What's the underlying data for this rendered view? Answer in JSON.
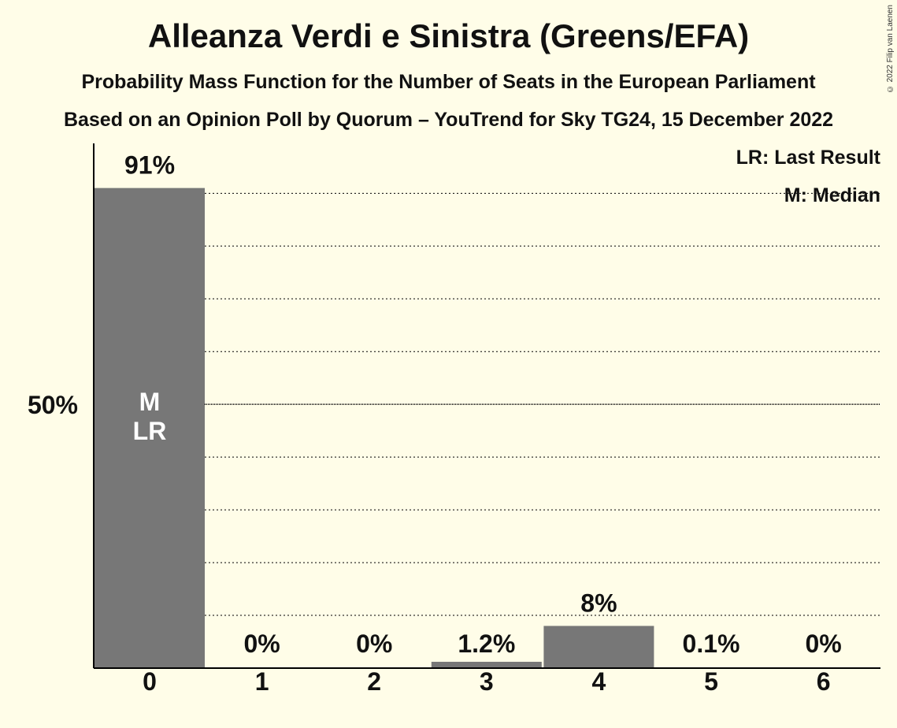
{
  "title": "Alleanza Verdi e Sinistra (Greens/EFA)",
  "subtitle1": "Probability Mass Function for the Number of Seats in the European Parliament",
  "subtitle2": "Based on an Opinion Poll by Quorum – YouTrend for Sky TG24, 15 December 2022",
  "copyright": "© 2022 Filip van Laenen",
  "legend": {
    "last_result": "LR: Last Result",
    "median": "M: Median"
  },
  "colors": {
    "background": "#FFFDE8",
    "bar": "#777777",
    "bar_marker_text": "#FFFFFF"
  },
  "chart_data": {
    "type": "bar",
    "categories": [
      "0",
      "1",
      "2",
      "3",
      "4",
      "5",
      "6"
    ],
    "values": [
      91,
      0,
      0,
      1.2,
      8,
      0.1,
      0
    ],
    "value_labels": [
      "91%",
      "0%",
      "0%",
      "1.2%",
      "8%",
      "0.1%",
      "0%"
    ],
    "y_tick_label": "50%",
    "y_tick_value": 50,
    "ylim": [
      0,
      100
    ],
    "gridlines": [
      10,
      20,
      30,
      40,
      50,
      60,
      70,
      80,
      90
    ],
    "grid": true,
    "median_index": 0,
    "last_result_index": 0,
    "median_marker": "M",
    "last_result_marker": "LR"
  }
}
